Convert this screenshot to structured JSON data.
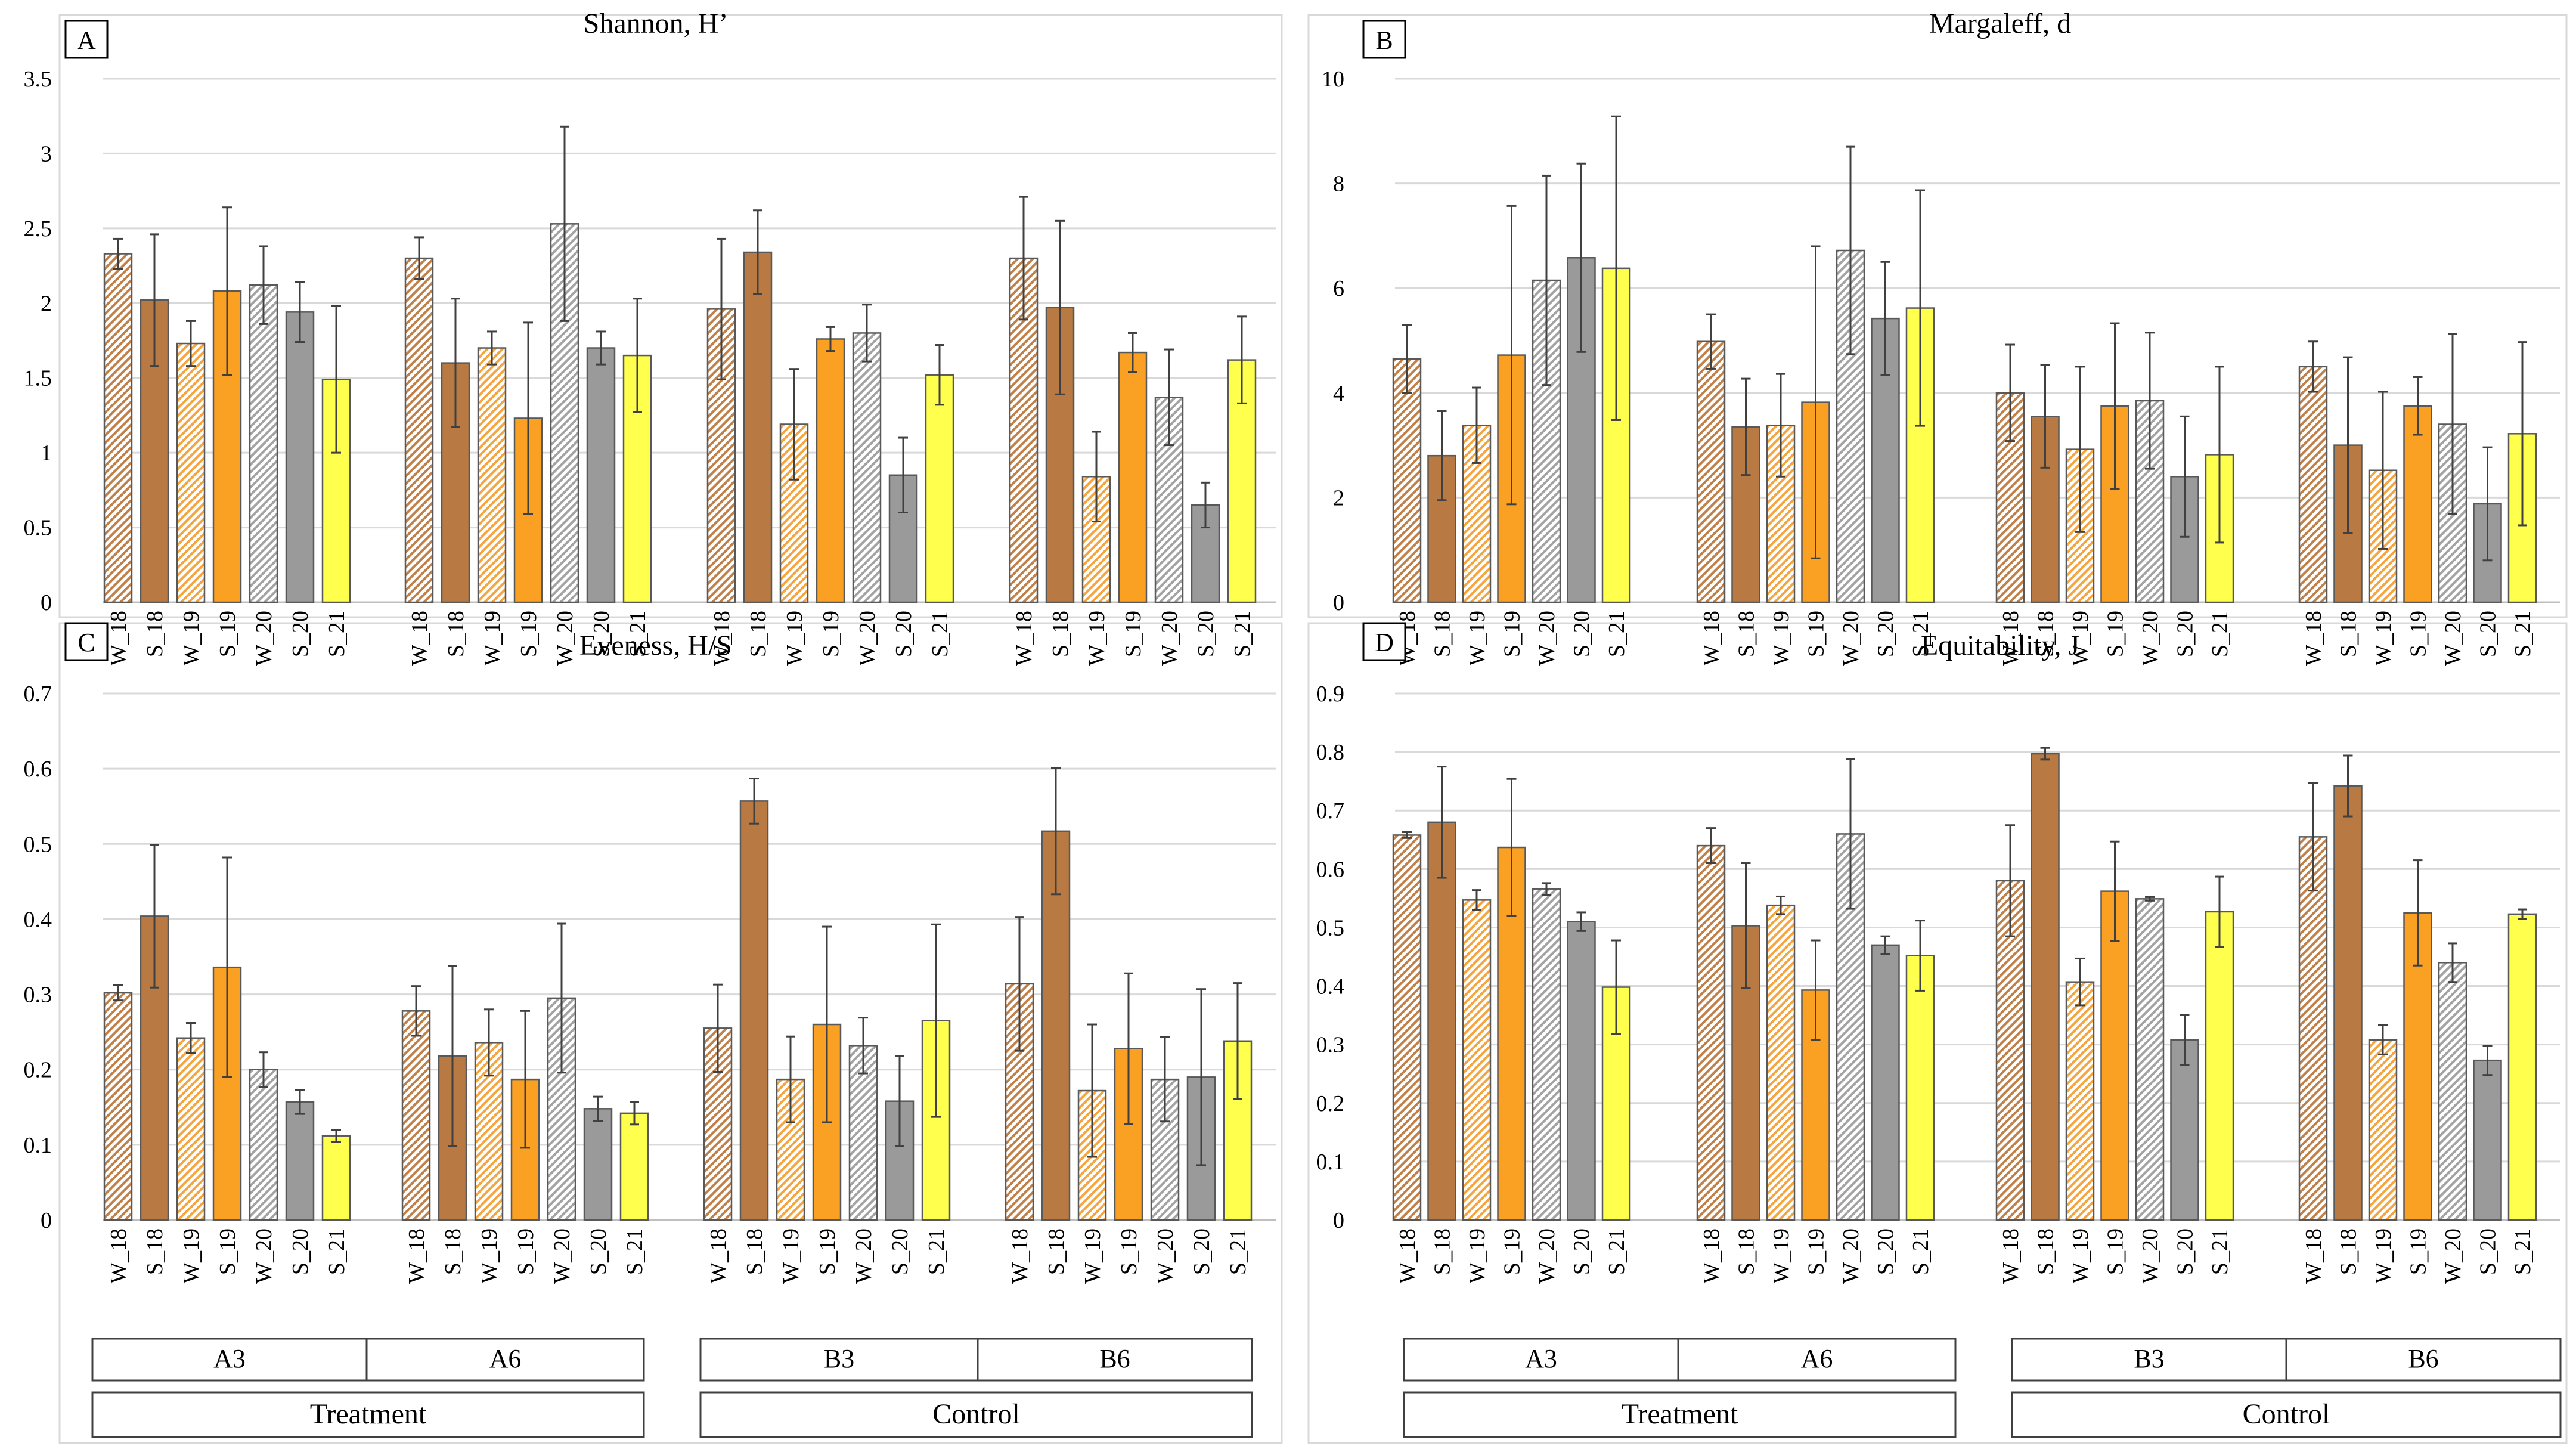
{
  "figure": {
    "categories": [
      "W_18",
      "S_18",
      "W_19",
      "S_19",
      "W_20",
      "S_20",
      "S_21"
    ],
    "sites": [
      "A3",
      "A6",
      "B3",
      "B6"
    ],
    "groups": [
      {
        "label": "Treatment",
        "sites": [
          "A3",
          "A6"
        ]
      },
      {
        "label": "Control",
        "sites": [
          "B3",
          "B6"
        ]
      }
    ],
    "series_styles": [
      {
        "category": "W_18",
        "color": "#C0804A",
        "pattern": "hatched"
      },
      {
        "category": "S_18",
        "color": "#B87A42",
        "pattern": "solid"
      },
      {
        "category": "W_19",
        "color": "#F5A540",
        "pattern": "hatched"
      },
      {
        "category": "S_19",
        "color": "#FAA124",
        "pattern": "solid"
      },
      {
        "category": "W_20",
        "color": "#A3A3A3",
        "pattern": "hatched"
      },
      {
        "category": "S_20",
        "color": "#9A9A9A",
        "pattern": "solid"
      },
      {
        "category": "S_21",
        "color": "#FFFF4D",
        "pattern": "solid"
      }
    ]
  },
  "chart_data": [
    {
      "panel": "A",
      "type": "bar",
      "title": "Shannon, H’",
      "ylim": [
        0,
        3.5
      ],
      "yticks": [
        "0",
        "0.5",
        "1",
        "1.5",
        "2",
        "2.5",
        "3",
        "3.5"
      ],
      "groups": [
        {
          "site": "A3",
          "values": [
            2.33,
            2.02,
            1.73,
            2.08,
            2.12,
            1.94,
            1.49
          ],
          "errors": [
            0.1,
            0.44,
            0.15,
            0.56,
            0.26,
            0.2,
            0.49
          ]
        },
        {
          "site": "A6",
          "values": [
            2.3,
            1.6,
            1.7,
            1.23,
            2.53,
            1.7,
            1.65
          ],
          "errors": [
            0.14,
            0.43,
            0.11,
            0.64,
            0.65,
            0.11,
            0.38
          ]
        },
        {
          "site": "B3",
          "values": [
            1.96,
            2.34,
            1.19,
            1.76,
            1.8,
            0.85,
            1.52
          ],
          "errors": [
            0.47,
            0.28,
            0.37,
            0.08,
            0.19,
            0.25,
            0.2
          ]
        },
        {
          "site": "B6",
          "values": [
            2.3,
            1.97,
            0.84,
            1.67,
            1.37,
            0.65,
            1.62
          ],
          "errors": [
            0.41,
            0.58,
            0.3,
            0.13,
            0.32,
            0.15,
            0.29
          ]
        }
      ]
    },
    {
      "panel": "B",
      "type": "bar",
      "title": "Margaleff, d",
      "ylim": [
        0,
        10
      ],
      "yticks": [
        "0",
        "2",
        "4",
        "6",
        "8",
        "10"
      ],
      "groups": [
        {
          "site": "A3",
          "values": [
            4.65,
            2.8,
            3.38,
            4.72,
            6.15,
            6.58,
            6.38
          ],
          "errors": [
            0.65,
            0.85,
            0.72,
            2.85,
            2.0,
            1.8,
            2.9
          ]
        },
        {
          "site": "A6",
          "values": [
            4.98,
            3.35,
            3.38,
            3.82,
            6.72,
            5.42,
            5.62
          ],
          "errors": [
            0.52,
            0.92,
            0.98,
            2.98,
            1.98,
            1.08,
            2.25
          ]
        },
        {
          "site": "B3",
          "values": [
            4.0,
            3.55,
            2.92,
            3.75,
            3.85,
            2.4,
            2.82
          ],
          "errors": [
            0.92,
            0.98,
            1.58,
            1.58,
            1.3,
            1.15,
            1.68
          ]
        },
        {
          "site": "B6",
          "values": [
            4.5,
            3.0,
            2.52,
            3.75,
            3.4,
            1.88,
            3.22
          ],
          "errors": [
            0.48,
            1.68,
            1.5,
            0.55,
            1.72,
            1.08,
            1.75
          ]
        }
      ]
    },
    {
      "panel": "C",
      "type": "bar",
      "title": "Eveness, H/S",
      "ylim": [
        0,
        0.7
      ],
      "yticks": [
        "0",
        "0.1",
        "0.2",
        "0.3",
        "0.4",
        "0.5",
        "0.6",
        "0.7"
      ],
      "groups": [
        {
          "site": "A3",
          "values": [
            0.302,
            0.404,
            0.242,
            0.336,
            0.2,
            0.157,
            0.112
          ],
          "errors": [
            0.01,
            0.095,
            0.02,
            0.146,
            0.023,
            0.016,
            0.008
          ]
        },
        {
          "site": "A6",
          "values": [
            0.278,
            0.218,
            0.236,
            0.187,
            0.295,
            0.148,
            0.142
          ],
          "errors": [
            0.033,
            0.12,
            0.044,
            0.091,
            0.099,
            0.016,
            0.015
          ]
        },
        {
          "site": "B3",
          "values": [
            0.255,
            0.557,
            0.187,
            0.26,
            0.232,
            0.158,
            0.265
          ],
          "errors": [
            0.058,
            0.03,
            0.057,
            0.13,
            0.037,
            0.06,
            0.128
          ]
        },
        {
          "site": "B6",
          "values": [
            0.314,
            0.517,
            0.172,
            0.228,
            0.187,
            0.19,
            0.238
          ],
          "errors": [
            0.089,
            0.084,
            0.088,
            0.1,
            0.056,
            0.117,
            0.077
          ]
        }
      ]
    },
    {
      "panel": "D",
      "type": "bar",
      "title": "Equitability, J",
      "ylim": [
        0,
        0.9
      ],
      "yticks": [
        "0",
        "0.1",
        "0.2",
        "0.3",
        "0.4",
        "0.5",
        "0.6",
        "0.7",
        "0.8",
        "0.9"
      ],
      "groups": [
        {
          "site": "A3",
          "values": [
            0.658,
            0.68,
            0.547,
            0.637,
            0.566,
            0.51,
            0.398
          ],
          "errors": [
            0.005,
            0.095,
            0.017,
            0.117,
            0.01,
            0.016,
            0.08
          ]
        },
        {
          "site": "A6",
          "values": [
            0.64,
            0.503,
            0.538,
            0.393,
            0.66,
            0.47,
            0.452
          ],
          "errors": [
            0.03,
            0.107,
            0.015,
            0.085,
            0.128,
            0.015,
            0.06
          ]
        },
        {
          "site": "B3",
          "values": [
            0.58,
            0.797,
            0.407,
            0.562,
            0.549,
            0.308,
            0.527
          ],
          "errors": [
            0.095,
            0.01,
            0.04,
            0.085,
            0.003,
            0.043,
            0.06
          ]
        },
        {
          "site": "B6",
          "values": [
            0.655,
            0.742,
            0.308,
            0.525,
            0.44,
            0.273,
            0.523
          ],
          "errors": [
            0.092,
            0.052,
            0.025,
            0.09,
            0.033,
            0.025,
            0.008
          ]
        }
      ]
    }
  ]
}
